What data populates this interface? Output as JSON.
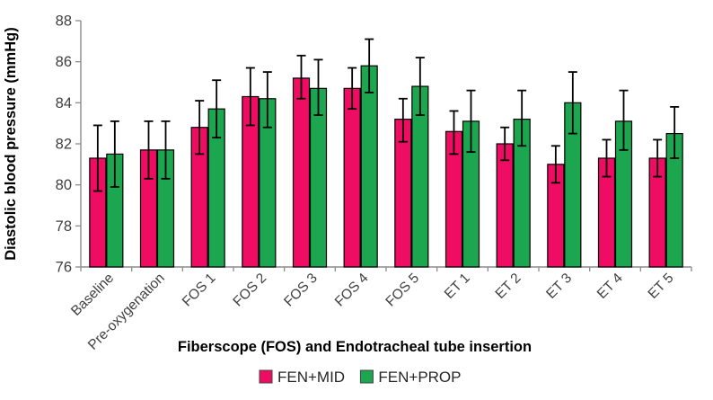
{
  "chart_data": {
    "type": "bar",
    "title": "",
    "xlabel": "Fiberscope (FOS) and Endotracheal tube insertion",
    "ylabel": "Diastolic blood pressure (mmHg)",
    "ylim": [
      76,
      88
    ],
    "ytick_step": 2,
    "yticks": [
      76,
      78,
      80,
      82,
      84,
      86,
      88
    ],
    "grid": false,
    "legend_position": "bottom",
    "categories": [
      "Baseline",
      "Pre-oxygenation",
      "FOS 1",
      "FOS 2",
      "FOS 3",
      "FOS 4",
      "FOS 5",
      "ET 1",
      "ET 2",
      "ET 3",
      "ET 4",
      "ET 5"
    ],
    "series": [
      {
        "name": "FEN+MID",
        "color": "#EF0D63",
        "values": [
          81.3,
          81.7,
          82.8,
          84.3,
          85.2,
          84.7,
          83.2,
          82.6,
          82.0,
          81.0,
          81.3,
          81.3
        ],
        "error_low": [
          79.7,
          80.3,
          81.5,
          82.9,
          84.2,
          83.7,
          82.1,
          81.5,
          81.2,
          80.1,
          80.4,
          80.4
        ],
        "error_high": [
          82.9,
          83.1,
          84.1,
          85.7,
          86.3,
          85.7,
          84.2,
          83.6,
          82.8,
          81.9,
          82.2,
          82.2
        ]
      },
      {
        "name": "FEN+PROP",
        "color": "#1CA64F",
        "values": [
          81.5,
          81.7,
          83.7,
          84.2,
          84.7,
          85.8,
          84.8,
          83.1,
          83.2,
          84.0,
          83.1,
          82.5
        ],
        "error_low": [
          79.9,
          80.3,
          82.3,
          82.8,
          83.4,
          84.5,
          83.4,
          81.6,
          81.9,
          82.5,
          81.7,
          81.3
        ],
        "error_high": [
          83.1,
          83.1,
          85.1,
          85.5,
          86.1,
          87.1,
          86.2,
          84.6,
          84.6,
          85.5,
          84.6,
          83.8
        ]
      }
    ],
    "style": {
      "axis_color": "#8C8C8C",
      "tick_label_color": "#404040",
      "title_color": "#000000",
      "bar_outline_color": "#000000",
      "error_bar_color": "#000000"
    }
  }
}
